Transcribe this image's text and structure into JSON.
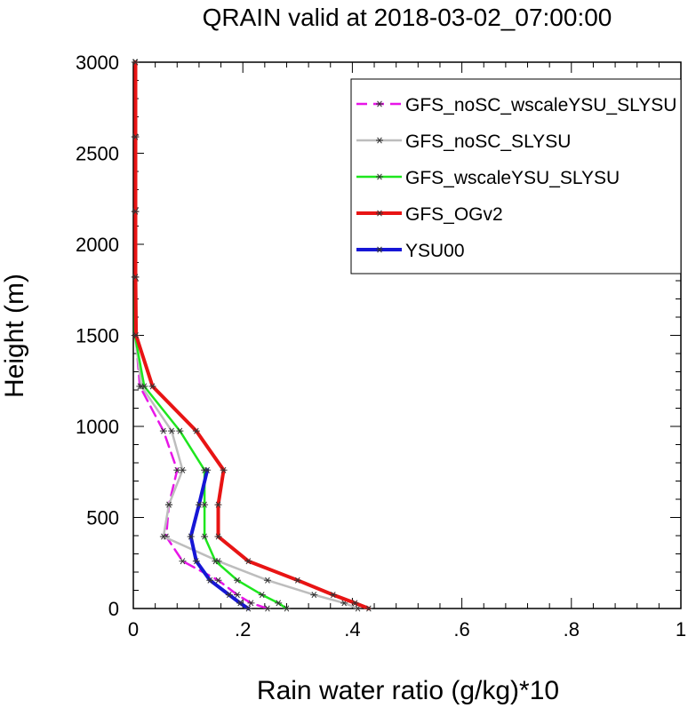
{
  "chart_data": {
    "type": "line",
    "title": "QRAIN valid at 2018-03-02_07:00:00",
    "xlabel": "Rain water ratio (g/kg)*10",
    "ylabel": "Height (m)",
    "xlim": [
      0,
      1
    ],
    "ylim": [
      0,
      3000
    ],
    "x_ticks": [
      "0",
      ".2",
      ".4",
      ".6",
      ".8",
      "1"
    ],
    "y_ticks": [
      "0",
      "500",
      "1000",
      "1500",
      "2000",
      "2500",
      "3000"
    ],
    "x_tick_values": [
      0,
      0.2,
      0.4,
      0.6,
      0.8,
      1.0
    ],
    "y_tick_values": [
      0,
      500,
      1000,
      1500,
      2000,
      2500,
      3000
    ],
    "legend_position": "top-right",
    "series": [
      {
        "name": "GFS_noSC_wscaleYSU_SLYSU",
        "color": "#e815e8",
        "style": "dashed",
        "width": 2.5,
        "points": [
          [
            0.245,
            0
          ],
          [
            0.215,
            30
          ],
          [
            0.19,
            75
          ],
          [
            0.155,
            155
          ],
          [
            0.09,
            260
          ],
          [
            0.06,
            395
          ],
          [
            0.065,
            570
          ],
          [
            0.08,
            760
          ],
          [
            0.055,
            975
          ],
          [
            0.012,
            1220
          ],
          [
            0.004,
            1500
          ],
          [
            0.004,
            1820
          ],
          [
            0.004,
            2180
          ],
          [
            0.004,
            2590
          ],
          [
            0.004,
            3000
          ]
        ]
      },
      {
        "name": "GFS_noSC_SLYSU",
        "color": "#bdbdbd",
        "style": "solid",
        "width": 2.5,
        "points": [
          [
            0.41,
            0
          ],
          [
            0.385,
            30
          ],
          [
            0.33,
            75
          ],
          [
            0.245,
            155
          ],
          [
            0.155,
            260
          ],
          [
            0.055,
            395
          ],
          [
            0.065,
            570
          ],
          [
            0.09,
            760
          ],
          [
            0.07,
            975
          ],
          [
            0.015,
            1220
          ],
          [
            0.003,
            1500
          ],
          [
            0.003,
            1820
          ],
          [
            0.003,
            2180
          ],
          [
            0.003,
            2590
          ],
          [
            0.003,
            3000
          ]
        ]
      },
      {
        "name": "GFS_wscaleYSU_SLYSU",
        "color": "#1ee61e",
        "style": "solid",
        "width": 2.5,
        "points": [
          [
            0.28,
            0
          ],
          [
            0.265,
            30
          ],
          [
            0.235,
            75
          ],
          [
            0.19,
            155
          ],
          [
            0.15,
            260
          ],
          [
            0.13,
            395
          ],
          [
            0.13,
            570
          ],
          [
            0.13,
            760
          ],
          [
            0.085,
            975
          ],
          [
            0.02,
            1220
          ],
          [
            0.003,
            1500
          ],
          [
            0.003,
            1820
          ],
          [
            0.003,
            2180
          ],
          [
            0.003,
            2590
          ],
          [
            0.003,
            3000
          ]
        ]
      },
      {
        "name": "GFS_OGv2",
        "color": "#e81414",
        "style": "solid",
        "width": 4,
        "points": [
          [
            0.43,
            0
          ],
          [
            0.405,
            30
          ],
          [
            0.365,
            75
          ],
          [
            0.3,
            155
          ],
          [
            0.21,
            260
          ],
          [
            0.155,
            395
          ],
          [
            0.155,
            570
          ],
          [
            0.165,
            760
          ],
          [
            0.115,
            975
          ],
          [
            0.035,
            1220
          ],
          [
            0.005,
            1500
          ],
          [
            0.004,
            1820
          ],
          [
            0.004,
            2180
          ],
          [
            0.004,
            2590
          ],
          [
            0.004,
            3000
          ]
        ]
      },
      {
        "name": "YSU00",
        "color": "#1616d6",
        "style": "solid",
        "width": 4,
        "points": [
          [
            0.21,
            0
          ],
          [
            0.195,
            30
          ],
          [
            0.175,
            75
          ],
          [
            0.14,
            155
          ],
          [
            0.115,
            260
          ],
          [
            0.105,
            395
          ],
          [
            0.12,
            570
          ],
          [
            0.135,
            760
          ]
        ]
      }
    ]
  }
}
